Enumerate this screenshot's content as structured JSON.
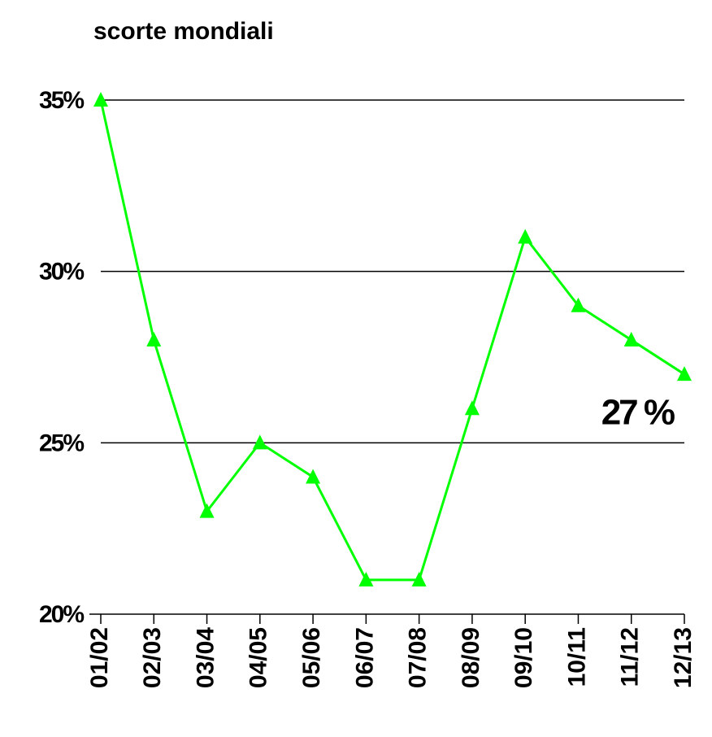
{
  "chart_data": {
    "type": "line",
    "title": "scorte mondiali",
    "categories": [
      "01/02",
      "02/03",
      "03/04",
      "04/05",
      "05/06",
      "06/07",
      "07/08",
      "08/09",
      "09/10",
      "10/11",
      "11/12",
      "12/13"
    ],
    "series": [
      {
        "name": "scorte mondiali",
        "color": "#00ff00",
        "values": [
          35,
          28,
          23,
          25,
          24,
          21,
          21,
          26,
          31,
          29,
          28,
          27
        ]
      }
    ],
    "ylim": [
      20,
      35
    ],
    "yticks": [
      {
        "value": 20,
        "label": "20%"
      },
      {
        "value": 25,
        "label": "25%"
      },
      {
        "value": 30,
        "label": "30%"
      },
      {
        "value": 35,
        "label": "35%"
      }
    ],
    "grid": true,
    "annotation": "27 %"
  }
}
